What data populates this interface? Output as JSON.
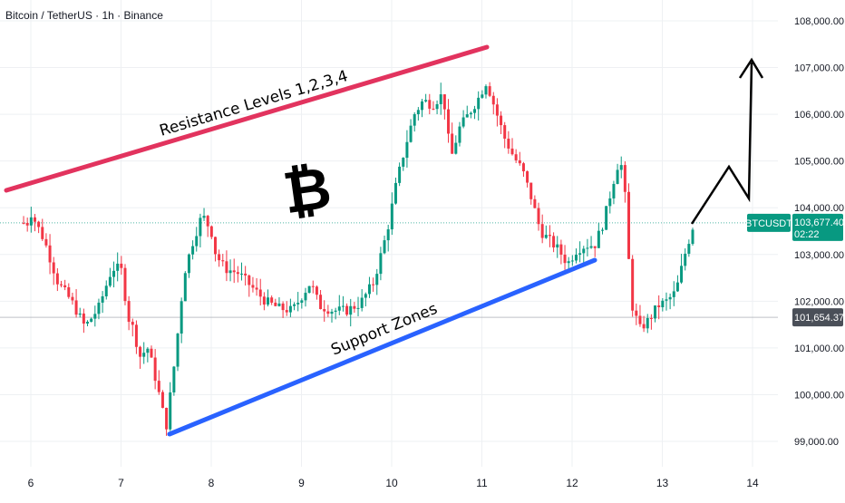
{
  "header": {
    "title": "Bitcoin / TetherUS · 1h · Binance"
  },
  "chart_data": {
    "type": "candlestick",
    "symbol": "BTCUSDT",
    "y_ticks": [
      108000,
      107000,
      106000,
      105000,
      104000,
      103000,
      102000,
      101000,
      100000,
      99000
    ],
    "y_tick_labels": [
      "108,000.00",
      "107,000.00",
      "106,000.00",
      "105,000.00",
      "104,000.00",
      "103,000.00",
      "102,000.00",
      "101,000.00",
      "100,000.00",
      "99,000.00"
    ],
    "x_tick_labels": [
      "6",
      "7",
      "8",
      "9",
      "10",
      "11",
      "12",
      "13",
      "14"
    ],
    "ylim": [
      98700,
      108400
    ],
    "grid": true,
    "current_price": {
      "symbol": "BTCUSDT",
      "price": "103,677.40",
      "countdown": "02:22",
      "value": 103677.4
    },
    "reference_price": {
      "label": "101,654.37",
      "value": 101654.37
    },
    "path": [
      [
        6.0,
        103900
      ],
      [
        6.15,
        103300
      ],
      [
        6.3,
        102400
      ],
      [
        6.45,
        102000
      ],
      [
        6.6,
        101450
      ],
      [
        6.75,
        101850
      ],
      [
        6.9,
        102700
      ],
      [
        7.0,
        102700
      ],
      [
        7.08,
        101650
      ],
      [
        7.15,
        101350
      ],
      [
        7.2,
        100800
      ],
      [
        7.3,
        101000
      ],
      [
        7.4,
        100200
      ],
      [
        7.5,
        99300
      ],
      [
        7.6,
        100800
      ],
      [
        7.7,
        102600
      ],
      [
        7.8,
        103300
      ],
      [
        7.9,
        103850
      ],
      [
        8.0,
        103500
      ],
      [
        8.05,
        103000
      ],
      [
        8.15,
        102700
      ],
      [
        8.3,
        102600
      ],
      [
        8.45,
        102300
      ],
      [
        8.6,
        102000
      ],
      [
        8.75,
        101850
      ],
      [
        8.9,
        101800
      ],
      [
        9.0,
        102100
      ],
      [
        9.1,
        102400
      ],
      [
        9.2,
        101900
      ],
      [
        9.35,
        101800
      ],
      [
        9.5,
        101800
      ],
      [
        9.65,
        101950
      ],
      [
        9.8,
        102400
      ],
      [
        9.95,
        103500
      ],
      [
        10.05,
        104500
      ],
      [
        10.15,
        105300
      ],
      [
        10.25,
        106000
      ],
      [
        10.35,
        106300
      ],
      [
        10.45,
        106200
      ],
      [
        10.55,
        106400
      ],
      [
        10.6,
        106100
      ],
      [
        10.65,
        105000
      ],
      [
        10.75,
        105700
      ],
      [
        10.85,
        106000
      ],
      [
        10.95,
        106300
      ],
      [
        11.05,
        106700
      ],
      [
        11.15,
        106100
      ],
      [
        11.25,
        105500
      ],
      [
        11.35,
        105100
      ],
      [
        11.45,
        104800
      ],
      [
        11.55,
        104200
      ],
      [
        11.65,
        103500
      ],
      [
        11.75,
        103300
      ],
      [
        11.85,
        103100
      ],
      [
        11.95,
        102800
      ],
      [
        12.05,
        103100
      ],
      [
        12.15,
        103200
      ],
      [
        12.25,
        103200
      ],
      [
        12.35,
        103700
      ],
      [
        12.45,
        104500
      ],
      [
        12.5,
        104900
      ],
      [
        12.55,
        104900
      ],
      [
        12.6,
        104000
      ],
      [
        12.65,
        102000
      ],
      [
        12.75,
        101400
      ],
      [
        12.85,
        101600
      ],
      [
        12.95,
        101900
      ],
      [
        13.05,
        102000
      ],
      [
        13.15,
        102200
      ],
      [
        13.25,
        103000
      ],
      [
        13.35,
        103677
      ]
    ],
    "annotations": {
      "resistance_label": "Resistance Levels 1,2,3,4",
      "support_label": "Support Zones",
      "bitcoin_symbol": "₿",
      "resistance_color": "#e2335e",
      "support_color": "#2962ff",
      "projection_color": "#000000"
    },
    "colors": {
      "up": "#089981",
      "down": "#f23645",
      "badge": "#089981",
      "grey_badge": "#4a4f58"
    }
  }
}
